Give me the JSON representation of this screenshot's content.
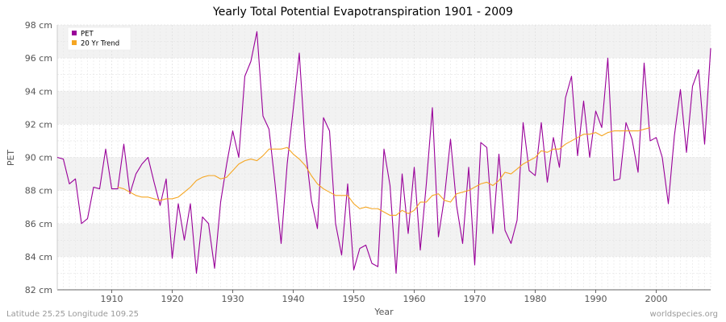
{
  "chart_data": {
    "type": "line",
    "title": "Yearly Total Potential Evapotranspiration 1901 - 2009",
    "xlabel": "Year",
    "ylabel": "PET",
    "xlim": [
      1901,
      2009
    ],
    "ylim": [
      82,
      98
    ],
    "x_ticks": [
      "1910",
      "1920",
      "1930",
      "1940",
      "1950",
      "1960",
      "1970",
      "1980",
      "1990",
      "2000"
    ],
    "y_ticks": [
      "82 cm",
      "84 cm",
      "86 cm",
      "88 cm",
      "90 cm",
      "92 cm",
      "94 cm",
      "96 cm",
      "98 cm"
    ],
    "grid": true,
    "legend": {
      "placement": "top-left",
      "entries": [
        "PET",
        "20 Yr Trend"
      ]
    },
    "series": [
      {
        "name": "PET",
        "color": "#990099",
        "x_start": 1901,
        "values": [
          90.0,
          89.9,
          88.4,
          88.7,
          86.0,
          86.3,
          88.2,
          88.1,
          90.5,
          88.1,
          88.1,
          90.8,
          87.8,
          89.0,
          89.6,
          90.0,
          88.5,
          87.1,
          88.7,
          83.9,
          87.2,
          85.0,
          87.2,
          83.0,
          86.4,
          86.0,
          83.3,
          87.3,
          89.6,
          91.6,
          90.0,
          94.9,
          95.8,
          97.6,
          92.5,
          91.7,
          88.4,
          84.8,
          89.6,
          92.9,
          96.3,
          90.6,
          87.4,
          85.7,
          92.4,
          91.6,
          86.0,
          84.1,
          88.4,
          83.2,
          84.5,
          84.7,
          83.6,
          83.4,
          90.5,
          88.3,
          83.0,
          89.0,
          85.4,
          89.4,
          84.4,
          88.4,
          93.0,
          85.2,
          87.6,
          91.1,
          87.1,
          84.8,
          89.4,
          83.5,
          90.9,
          90.6,
          85.4,
          90.2,
          85.6,
          84.8,
          86.2,
          92.1,
          89.2,
          88.9,
          92.1,
          88.5,
          91.2,
          89.4,
          93.6,
          94.9,
          90.1,
          93.4,
          90.0,
          92.8,
          91.8,
          96.0,
          88.6,
          88.7,
          92.1,
          91.1,
          89.1,
          95.7,
          91.0,
          91.2,
          90.0,
          87.2,
          91.3,
          94.1,
          90.3,
          94.3,
          95.3,
          90.8,
          96.6
        ]
      },
      {
        "name": "20 Yr Trend",
        "color": "#f5a623",
        "x_start": 1911,
        "values": [
          88.2,
          88.1,
          87.9,
          87.7,
          87.6,
          87.6,
          87.5,
          87.4,
          87.5,
          87.5,
          87.6,
          87.9,
          88.2,
          88.6,
          88.8,
          88.9,
          88.9,
          88.7,
          88.8,
          89.2,
          89.6,
          89.8,
          89.9,
          89.8,
          90.1,
          90.5,
          90.5,
          90.5,
          90.6,
          90.2,
          89.9,
          89.5,
          88.9,
          88.4,
          88.1,
          87.9,
          87.7,
          87.7,
          87.7,
          87.2,
          86.9,
          87.0,
          86.9,
          86.9,
          86.7,
          86.5,
          86.5,
          86.8,
          86.6,
          86.8,
          87.3,
          87.3,
          87.7,
          87.8,
          87.4,
          87.3,
          87.8,
          87.9,
          88.0,
          88.2,
          88.4,
          88.5,
          88.3,
          88.6,
          89.1,
          89.0,
          89.3,
          89.6,
          89.8,
          90.0,
          90.4,
          90.3,
          90.5,
          90.5,
          90.8,
          91.0,
          91.2,
          91.4,
          91.4,
          91.5,
          91.3,
          91.5,
          91.6,
          91.6,
          91.6,
          91.6,
          91.6,
          91.7,
          91.8
        ]
      }
    ]
  },
  "footer": {
    "left": "Latitude 25.25 Longitude 109.25",
    "right": "worldspecies.org"
  }
}
